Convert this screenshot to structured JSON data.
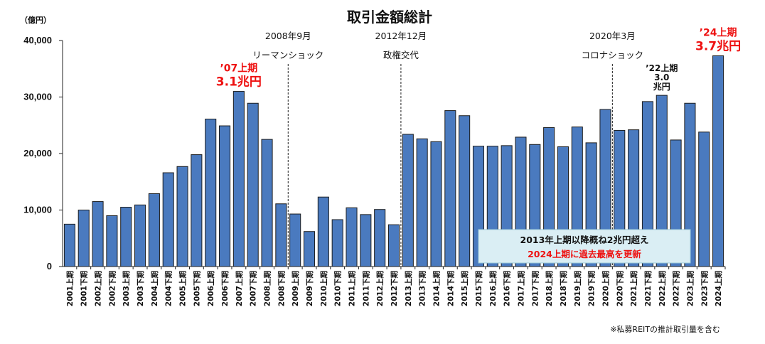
{
  "chart_data": {
    "type": "bar",
    "title": "取引金額総計",
    "unit": "（億円）",
    "ylim": [
      0,
      40000
    ],
    "yticks": [
      "0",
      "10,000",
      "20,000",
      "30,000",
      "40,000"
    ],
    "grid": false,
    "categories": [
      "2001上期",
      "2001下期",
      "2002上期",
      "2002下期",
      "2003上期",
      "2003下期",
      "2004上期",
      "2004下期",
      "2005上期",
      "2005下期",
      "2006上期",
      "2006下期",
      "2007上期",
      "2007下期",
      "2008上期",
      "2008下期",
      "2009上期",
      "2009下期",
      "2010上期",
      "2010下期",
      "2011上期",
      "2011下期",
      "2012上期",
      "2012下期",
      "2013上期",
      "2013下期",
      "2014上期",
      "2014下期",
      "2015上期",
      "2015下期",
      "2016上期",
      "2016下期",
      "2017上期",
      "2017下期",
      "2018上期",
      "2018下期",
      "2019上期",
      "2019下期",
      "2020上期",
      "2020下期",
      "2021上期",
      "2021下期",
      "2022上期",
      "2022下期",
      "2023上期",
      "2023下期",
      "2024上期"
    ],
    "values": [
      7500,
      10000,
      11500,
      9000,
      10500,
      10900,
      12900,
      16600,
      17700,
      19800,
      26100,
      24900,
      31000,
      28900,
      22500,
      11100,
      9300,
      6200,
      12300,
      8300,
      10400,
      9200,
      10100,
      7400,
      23400,
      22600,
      22100,
      27600,
      26700,
      21300,
      21300,
      21400,
      22900,
      21600,
      24600,
      21200,
      24700,
      21900,
      27800,
      24100,
      24200,
      29200,
      30300,
      22400,
      28900,
      23800,
      37300
    ],
    "events": [
      {
        "date": "2008年9月",
        "label": "リーマンショック",
        "after_index": 15
      },
      {
        "date": "2012年12月",
        "label": "政権交代",
        "after_index": 23
      },
      {
        "date": "2020年3月",
        "label": "コロナショック",
        "after_index": 38
      }
    ],
    "annotations": [
      {
        "index": 12,
        "lines": [
          "’07上期",
          "3.1兆円"
        ],
        "color": "#ee1111"
      },
      {
        "index": 42,
        "lines": [
          "’22上期",
          "3.0",
          "兆円"
        ],
        "color": "#111111"
      },
      {
        "index": 46,
        "lines": [
          "’24上期",
          "3.7兆円"
        ],
        "color": "#ee1111"
      }
    ],
    "callout": {
      "line1": "2013年上期以降概ね2兆円超え",
      "line2": "2024上期に過去最高を更新"
    },
    "footnote": "※私募REITの推計取引量を含む"
  }
}
